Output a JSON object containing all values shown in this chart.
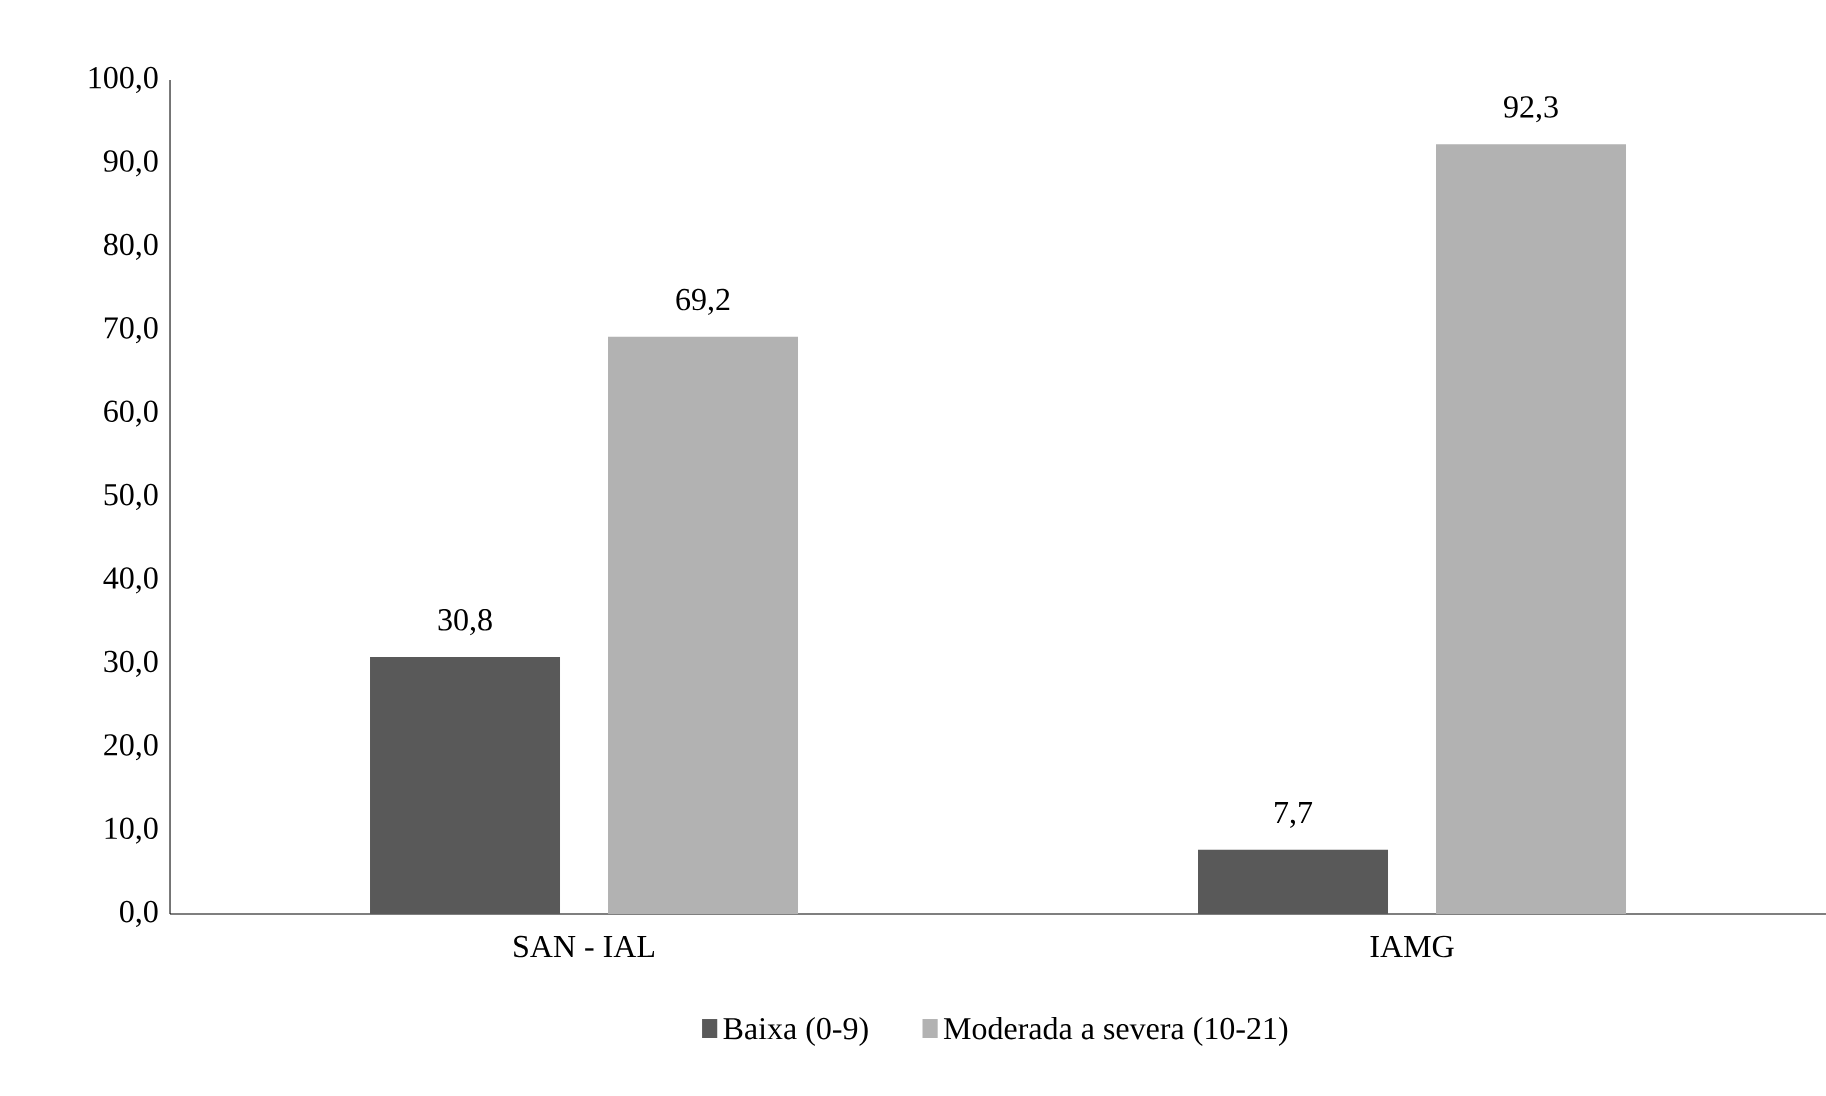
{
  "chart_data": {
    "type": "bar",
    "categories": [
      "SAN - IAL",
      "IAMG"
    ],
    "series": [
      {
        "name": "Baixa (0-9)",
        "color": "#595959",
        "values": [
          30.8,
          7.7
        ],
        "value_labels": [
          "30,8",
          "7,7"
        ]
      },
      {
        "name": "Moderada a severa (10-21)",
        "color": "#b2b2b2",
        "values": [
          69.2,
          92.3
        ],
        "value_labels": [
          "69,2",
          "92,3"
        ]
      }
    ],
    "ylim": [
      0,
      100
    ],
    "yticks": [
      {
        "value": 0,
        "label": "0,0"
      },
      {
        "value": 10,
        "label": "10,0"
      },
      {
        "value": 20,
        "label": "20,0"
      },
      {
        "value": 30,
        "label": "30,0"
      },
      {
        "value": 40,
        "label": "40,0"
      },
      {
        "value": 50,
        "label": "50,0"
      },
      {
        "value": 60,
        "label": "60,0"
      },
      {
        "value": 70,
        "label": "70,0"
      },
      {
        "value": 80,
        "label": "80,0"
      },
      {
        "value": 90,
        "label": "90,0"
      },
      {
        "value": 100,
        "label": "100,0"
      }
    ],
    "grid": false,
    "legend": "bottom"
  }
}
